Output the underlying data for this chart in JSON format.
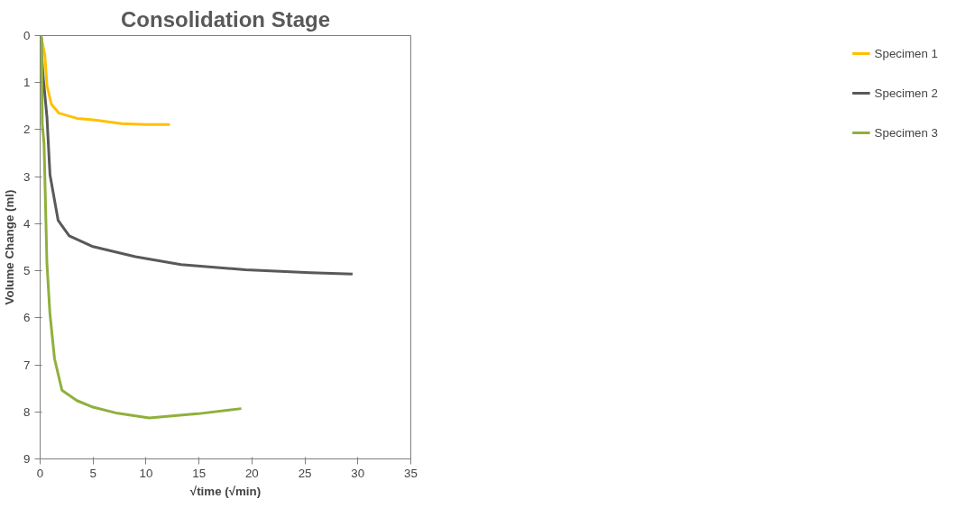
{
  "chart_data": {
    "type": "line",
    "title": "Consolidation Stage",
    "xlabel": "√time (√min)",
    "ylabel": "Volume Change (ml)",
    "xlim": [
      0,
      35
    ],
    "xticks": [
      0,
      5,
      10,
      15,
      20,
      25,
      30,
      35
    ],
    "ylim": [
      9,
      0
    ],
    "yticks": [
      0,
      1,
      2,
      3,
      4,
      5,
      6,
      7,
      8,
      9
    ],
    "grid": false,
    "legend": "right",
    "marker": "none",
    "line_style": "solid",
    "series": [
      {
        "name": "Specimen 1",
        "color": "#ffc000",
        "x": [
          0,
          0.08,
          0.44,
          0.65,
          1.06,
          1.78,
          3.47,
          5,
          7.7,
          10,
          12.25
        ],
        "values": [
          0,
          0.02,
          0.41,
          1.07,
          1.46,
          1.65,
          1.76,
          1.79,
          1.87,
          1.89,
          1.89
        ]
      },
      {
        "name": "Specimen 2",
        "color": "#595959",
        "x": [
          0,
          0.3,
          0.64,
          0.93,
          1.7,
          2.75,
          4.9,
          7.3,
          9,
          13.3,
          19.4,
          25.5,
          29.5
        ],
        "values": [
          0,
          0.91,
          1.72,
          2.96,
          3.93,
          4.26,
          4.48,
          4.61,
          4.7,
          4.87,
          4.98,
          5.04,
          5.07
        ]
      },
      {
        "name": "Specimen 3",
        "color": "#8fb03c",
        "x": [
          0,
          0.15,
          0.2,
          0.37,
          0.64,
          0.92,
          1.36,
          2.06,
          3.47,
          5,
          7.3,
          10.3,
          14.9,
          19.0
        ],
        "values": [
          0,
          0.05,
          1.87,
          2.3,
          4.83,
          5.9,
          6.87,
          7.54,
          7.76,
          7.9,
          8.03,
          8.13,
          8.04,
          7.93
        ]
      }
    ]
  }
}
